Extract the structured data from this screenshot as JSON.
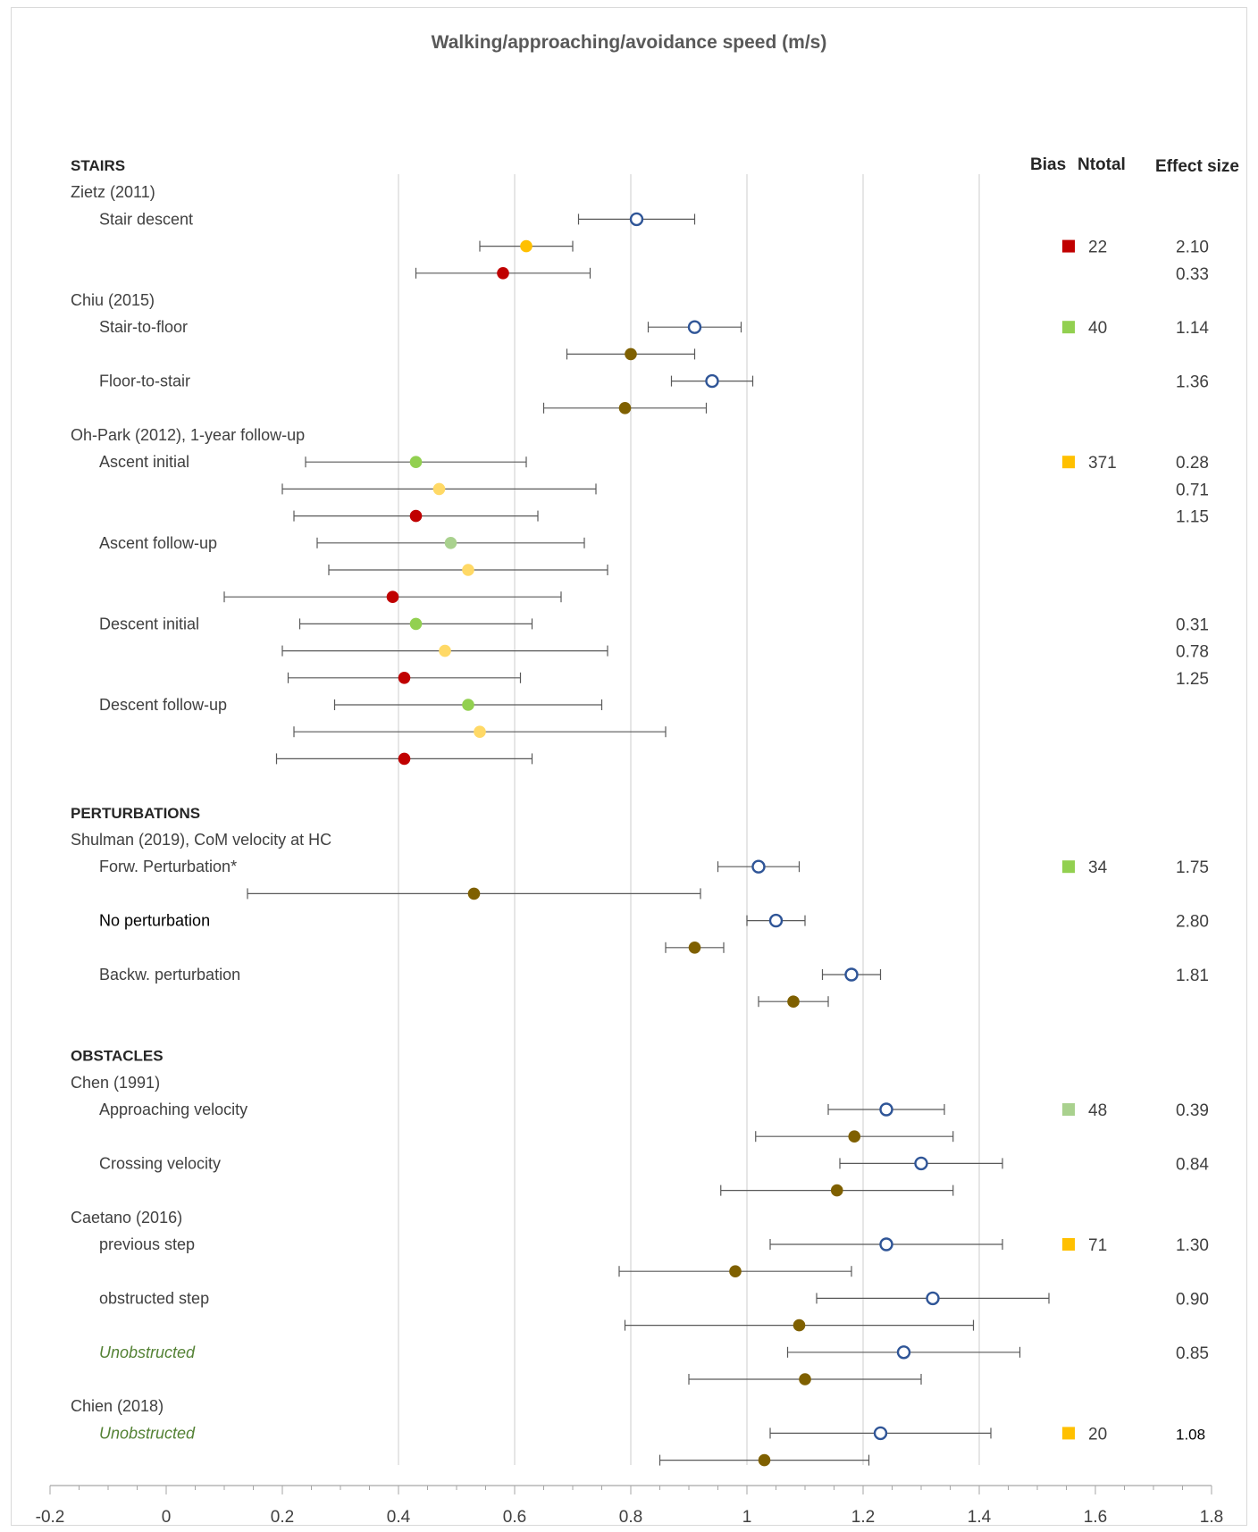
{
  "title": "Walking/approaching/avoidance speed (m/s)",
  "headers": {
    "bias": "Bias",
    "ntotal": "Ntotal",
    "effect_size": "Effect size"
  },
  "colors": {
    "blue_open": "#2f5597",
    "brown": "#7f6000",
    "red": "#c00000",
    "gold": "#ffc000",
    "green": "#92d050",
    "light_green": "#a9d18e",
    "light_gold": "#ffd966",
    "errorbar": "#595959",
    "gridline": "#d9d9d9",
    "italic_label": "#548235"
  },
  "rows": [
    {
      "kind": "section",
      "text": "STAIRS"
    },
    {
      "kind": "study",
      "text": "Zietz (2011)"
    },
    {
      "kind": "cond",
      "text": "Stair descent",
      "x": 0.81,
      "lo": 0.71,
      "hi": 0.91,
      "marker": "blue_open"
    },
    {
      "kind": "data",
      "x": 0.62,
      "lo": 0.54,
      "hi": 0.7,
      "marker": "gold",
      "bias": "red",
      "ntotal": "22",
      "effect": "2.10"
    },
    {
      "kind": "data",
      "x": 0.58,
      "lo": 0.43,
      "hi": 0.73,
      "marker": "red",
      "effect": "0.33"
    },
    {
      "kind": "study",
      "text": "Chiu (2015)"
    },
    {
      "kind": "cond",
      "text": "Stair-to-floor",
      "x": 0.91,
      "lo": 0.83,
      "hi": 0.99,
      "marker": "blue_open",
      "bias": "green",
      "ntotal": "40",
      "effect": "1.14"
    },
    {
      "kind": "data",
      "x": 0.8,
      "lo": 0.69,
      "hi": 0.91,
      "marker": "brown"
    },
    {
      "kind": "cond",
      "text": "Floor-to-stair",
      "x": 0.94,
      "lo": 0.87,
      "hi": 1.01,
      "marker": "blue_open",
      "effect": "1.36"
    },
    {
      "kind": "data",
      "x": 0.79,
      "lo": 0.65,
      "hi": 0.93,
      "marker": "brown"
    },
    {
      "kind": "study",
      "text": "Oh-Park (2012), 1-year follow-up"
    },
    {
      "kind": "cond",
      "text": "Ascent initial",
      "x": 0.43,
      "lo": 0.24,
      "hi": 0.62,
      "marker": "green",
      "bias": "gold",
      "ntotal": "371",
      "effect": "0.28"
    },
    {
      "kind": "data",
      "x": 0.47,
      "lo": 0.2,
      "hi": 0.74,
      "marker": "light_gold",
      "effect": "0.71"
    },
    {
      "kind": "data",
      "x": 0.43,
      "lo": 0.22,
      "hi": 0.64,
      "marker": "red",
      "effect": "1.15"
    },
    {
      "kind": "cond",
      "text": "Ascent follow-up",
      "x": 0.49,
      "lo": 0.26,
      "hi": 0.72,
      "marker": "light_green"
    },
    {
      "kind": "data",
      "x": 0.52,
      "lo": 0.28,
      "hi": 0.76,
      "marker": "light_gold"
    },
    {
      "kind": "data",
      "x": 0.39,
      "lo": 0.1,
      "hi": 0.68,
      "marker": "red"
    },
    {
      "kind": "cond",
      "text": "Descent initial",
      "x": 0.43,
      "lo": 0.23,
      "hi": 0.63,
      "marker": "green",
      "effect": "0.31"
    },
    {
      "kind": "data",
      "x": 0.48,
      "lo": 0.2,
      "hi": 0.76,
      "marker": "light_gold",
      "effect": "0.78"
    },
    {
      "kind": "data",
      "x": 0.41,
      "lo": 0.21,
      "hi": 0.61,
      "marker": "red",
      "effect": "1.25"
    },
    {
      "kind": "cond",
      "text": "Descent follow-up",
      "x": 0.52,
      "lo": 0.29,
      "hi": 0.75,
      "marker": "green"
    },
    {
      "kind": "data",
      "x": 0.54,
      "lo": 0.22,
      "hi": 0.86,
      "marker": "light_gold"
    },
    {
      "kind": "data",
      "x": 0.41,
      "lo": 0.19,
      "hi": 0.63,
      "marker": "red"
    },
    {
      "kind": "blank"
    },
    {
      "kind": "section",
      "text": "PERTURBATIONS"
    },
    {
      "kind": "study",
      "text": "Shulman (2019), CoM velocity at HC"
    },
    {
      "kind": "cond",
      "text": "Forw. Perturbation*",
      "x": 1.02,
      "lo": 0.95,
      "hi": 1.09,
      "marker": "blue_open",
      "bias": "green",
      "ntotal": "34",
      "effect": "1.75"
    },
    {
      "kind": "data",
      "x": 0.53,
      "lo": 0.14,
      "hi": 0.92,
      "marker": "brown"
    },
    {
      "kind": "cond",
      "text": "No perturbation",
      "style": "black",
      "x": 1.05,
      "lo": 1.0,
      "hi": 1.1,
      "marker": "blue_open",
      "effect": "2.80"
    },
    {
      "kind": "data",
      "x": 0.91,
      "lo": 0.86,
      "hi": 0.96,
      "marker": "brown"
    },
    {
      "kind": "cond",
      "text": "Backw. perturbation",
      "x": 1.18,
      "lo": 1.13,
      "hi": 1.23,
      "marker": "blue_open",
      "effect": "1.81"
    },
    {
      "kind": "data",
      "x": 1.08,
      "lo": 1.02,
      "hi": 1.14,
      "marker": "brown"
    },
    {
      "kind": "blank"
    },
    {
      "kind": "section",
      "text": "OBSTACLES"
    },
    {
      "kind": "study",
      "text": "Chen (1991)"
    },
    {
      "kind": "cond",
      "text": "Approaching velocity",
      "x": 1.24,
      "lo": 1.14,
      "hi": 1.34,
      "marker": "blue_open",
      "bias": "light_green",
      "ntotal": "48",
      "effect": "0.39"
    },
    {
      "kind": "data",
      "x": 1.185,
      "lo": 1.015,
      "hi": 1.355,
      "marker": "brown"
    },
    {
      "kind": "cond",
      "text": "Crossing velocity",
      "x": 1.3,
      "lo": 1.16,
      "hi": 1.44,
      "marker": "blue_open",
      "effect": "0.84"
    },
    {
      "kind": "data",
      "x": 1.155,
      "lo": 0.955,
      "hi": 1.355,
      "marker": "brown"
    },
    {
      "kind": "study",
      "text": "Caetano (2016)"
    },
    {
      "kind": "cond",
      "text": "previous step",
      "x": 1.24,
      "lo": 1.04,
      "hi": 1.44,
      "marker": "blue_open",
      "bias": "gold",
      "ntotal": "71",
      "effect": "1.30"
    },
    {
      "kind": "data",
      "x": 0.98,
      "lo": 0.78,
      "hi": 1.18,
      "marker": "brown"
    },
    {
      "kind": "cond",
      "text": "obstructed step",
      "x": 1.32,
      "lo": 1.12,
      "hi": 1.52,
      "marker": "blue_open",
      "effect": "0.90"
    },
    {
      "kind": "data",
      "x": 1.09,
      "lo": 0.79,
      "hi": 1.39,
      "marker": "brown"
    },
    {
      "kind": "cond",
      "text": "Unobstructed",
      "style": "green",
      "x": 1.27,
      "lo": 1.07,
      "hi": 1.47,
      "marker": "blue_open",
      "effect": "0.85"
    },
    {
      "kind": "data",
      "x": 1.1,
      "lo": 0.9,
      "hi": 1.3,
      "marker": "brown"
    },
    {
      "kind": "study",
      "text": "Chien (2018)"
    },
    {
      "kind": "cond",
      "text": "Unobstructed",
      "style": "green",
      "x": 1.23,
      "lo": 1.04,
      "hi": 1.42,
      "marker": "blue_open",
      "bias": "gold",
      "ntotal": "20",
      "effect": "1.08",
      "effect_style": "black"
    },
    {
      "kind": "data",
      "x": 1.03,
      "lo": 0.85,
      "hi": 1.21,
      "marker": "brown"
    }
  ],
  "chart_data": {
    "type": "scatter",
    "title": "Walking/approaching/avoidance speed (m/s)",
    "xlim": [
      -0.2,
      1.8
    ],
    "xticks": [
      "-0.2",
      "0",
      "0.2",
      "0.4",
      "0.6",
      "0.8",
      "1",
      "1.2",
      "1.4",
      "1.6",
      "1.8"
    ],
    "grid": "vertical at 0.4, 0.6, 0.8, 1.0, 1.2, 1.4",
    "error_bars": "horizontal"
  }
}
